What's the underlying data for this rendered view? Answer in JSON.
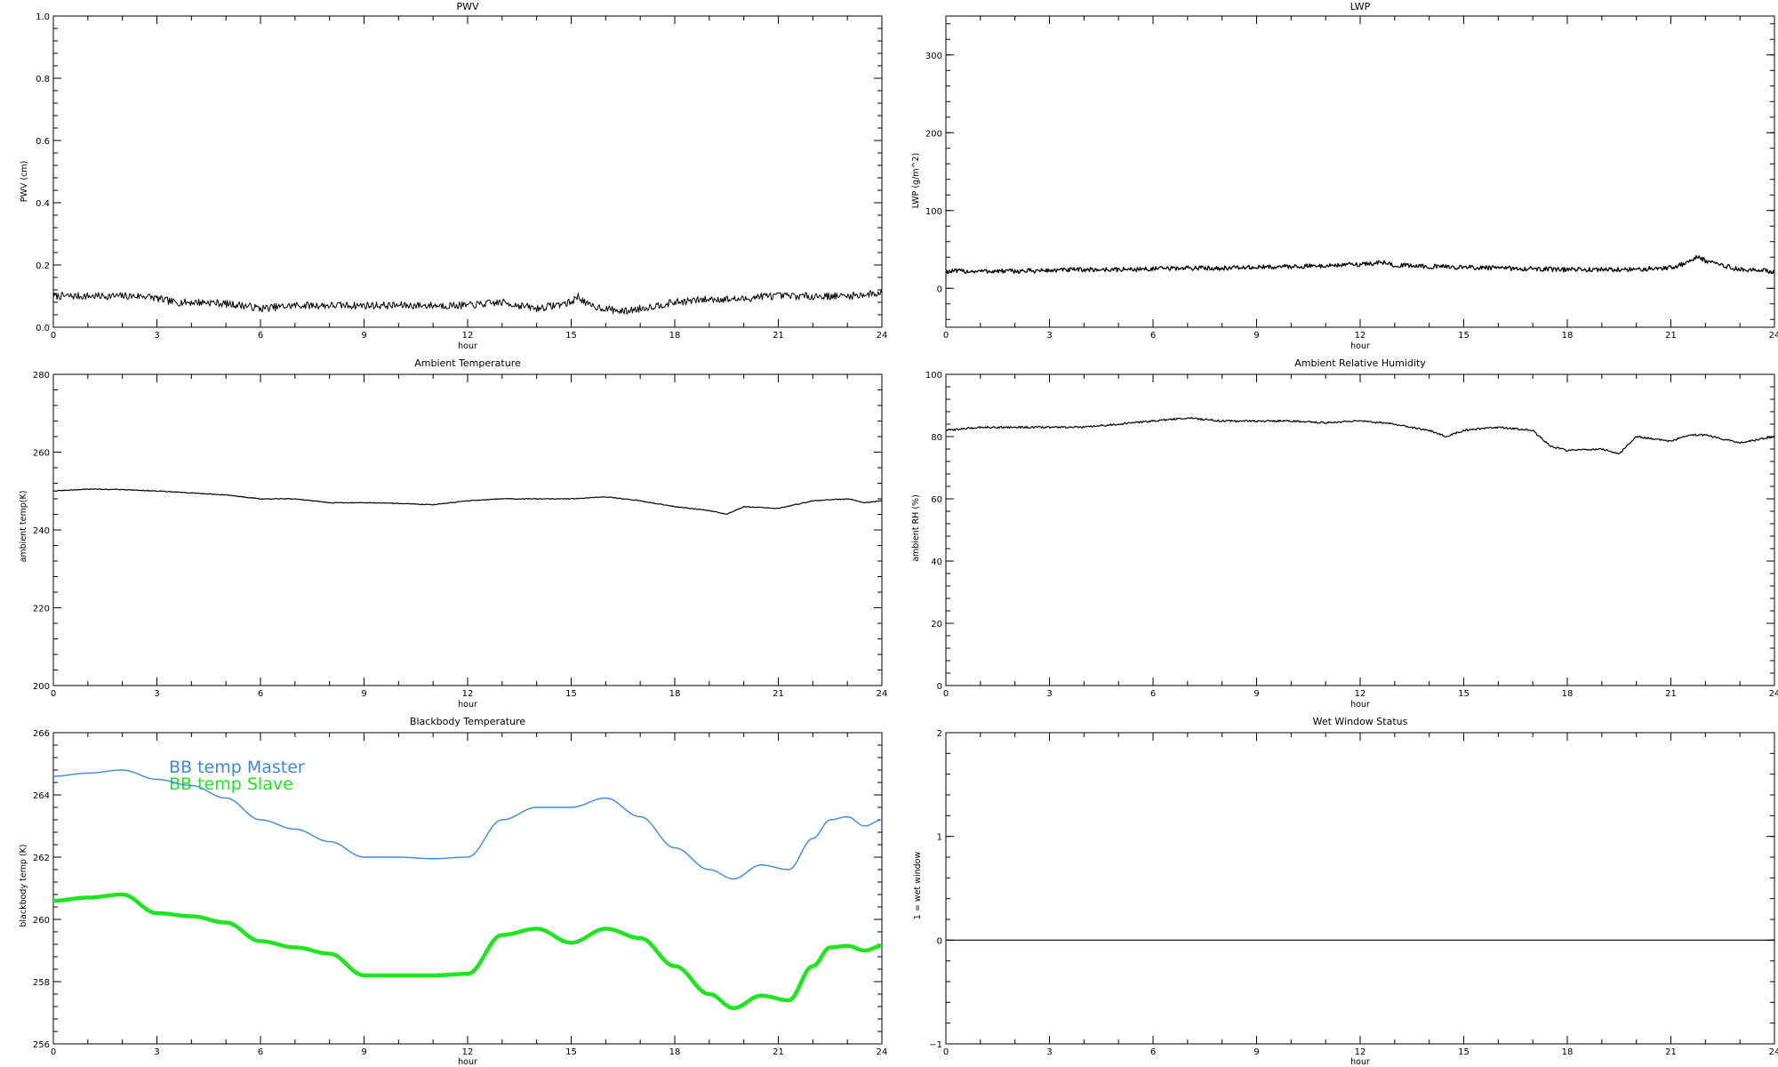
{
  "chart_data": [
    {
      "id": "pwv",
      "type": "line",
      "title": "PWV",
      "xlabel": "hour",
      "ylabel": "PWV (cm)",
      "xlim": [
        0,
        24
      ],
      "ylim": [
        0,
        1
      ],
      "xticks": [
        "0",
        "3",
        "6",
        "9",
        "12",
        "15",
        "18",
        "21",
        "24"
      ],
      "yticks": [
        "0.0",
        "0.2",
        "0.4",
        "0.6",
        "0.8",
        "1.0"
      ],
      "ytick_values": [
        0,
        0.2,
        0.4,
        0.6,
        0.8,
        1.0
      ],
      "noise": 0.012,
      "series": [
        {
          "color": "#000000",
          "width": 1,
          "x": [
            0,
            1,
            2,
            2.7,
            3.5,
            4.5,
            5.5,
            6,
            7,
            8,
            9,
            10,
            11,
            12,
            13,
            13.5,
            14,
            15,
            15.2,
            15.5,
            16,
            16.5,
            17,
            18,
            19,
            20,
            20.5,
            21,
            22,
            23,
            24
          ],
          "y": [
            0.1,
            0.1,
            0.1,
            0.1,
            0.08,
            0.08,
            0.07,
            0.06,
            0.07,
            0.07,
            0.07,
            0.07,
            0.07,
            0.07,
            0.08,
            0.07,
            0.06,
            0.08,
            0.1,
            0.07,
            0.06,
            0.05,
            0.06,
            0.08,
            0.09,
            0.09,
            0.1,
            0.1,
            0.1,
            0.1,
            0.11
          ]
        }
      ]
    },
    {
      "id": "lwp",
      "type": "line",
      "title": "LWP",
      "xlabel": "hour",
      "ylabel": "LWP (g/m^2)",
      "xlim": [
        0,
        24
      ],
      "ylim": [
        -50,
        350
      ],
      "xticks": [
        "0",
        "3",
        "6",
        "9",
        "12",
        "15",
        "18",
        "21",
        "24"
      ],
      "yticks": [
        "0",
        "100",
        "200",
        "300"
      ],
      "ytick_values": [
        0,
        100,
        200,
        300
      ],
      "noise": 3,
      "series": [
        {
          "color": "#000000",
          "width": 1.3,
          "x": [
            0,
            1,
            2,
            3,
            4,
            5,
            6,
            7,
            8,
            9,
            10,
            11,
            12,
            12.7,
            13,
            14,
            15,
            16,
            17,
            18,
            19,
            20,
            21,
            21.5,
            21.8,
            22,
            23,
            24
          ],
          "y": [
            22,
            22,
            22,
            23,
            24,
            24,
            25,
            26,
            26,
            27,
            28,
            29,
            31,
            33,
            30,
            28,
            27,
            26,
            25,
            24,
            24,
            24,
            27,
            33,
            42,
            35,
            24,
            22
          ]
        }
      ]
    },
    {
      "id": "ambient-temperature",
      "type": "line",
      "title": "Ambient Temperature",
      "xlabel": "hour",
      "ylabel": "ambient temp(K)",
      "xlim": [
        0,
        24
      ],
      "ylim": [
        200,
        280
      ],
      "xticks": [
        "0",
        "3",
        "6",
        "9",
        "12",
        "15",
        "18",
        "21",
        "24"
      ],
      "yticks": [
        "200",
        "220",
        "240",
        "260",
        "280"
      ],
      "ytick_values": [
        200,
        220,
        240,
        260,
        280
      ],
      "noise": 0.1,
      "series": [
        {
          "color": "#000000",
          "width": 1.2,
          "x": [
            0,
            1,
            2,
            3,
            4,
            5,
            6,
            7,
            8,
            9,
            10,
            11,
            12,
            13,
            14,
            15,
            16,
            17,
            18,
            19,
            19.5,
            20,
            21,
            22,
            23,
            23.5,
            24
          ],
          "y": [
            250,
            250.5,
            250.4,
            250,
            249.5,
            249,
            248,
            248,
            247,
            247,
            246.8,
            246.5,
            247.5,
            248,
            248,
            248,
            248.5,
            247.5,
            246,
            245,
            244,
            246,
            245.5,
            247.5,
            248,
            247,
            247.5
          ]
        }
      ]
    },
    {
      "id": "ambient-relative-humidity",
      "type": "line",
      "title": "Ambient Relative Humidity",
      "xlabel": "hour",
      "ylabel": "ambient RH (%)",
      "xlim": [
        0,
        24
      ],
      "ylim": [
        0,
        100
      ],
      "xticks": [
        "0",
        "3",
        "6",
        "9",
        "12",
        "15",
        "18",
        "21",
        "24"
      ],
      "yticks": [
        "0",
        "20",
        "40",
        "60",
        "80",
        "100"
      ],
      "ytick_values": [
        0,
        20,
        40,
        60,
        80,
        100
      ],
      "noise": 0.3,
      "series": [
        {
          "color": "#000000",
          "width": 1.2,
          "x": [
            0,
            1,
            2,
            3,
            4,
            5,
            6,
            7,
            8,
            9,
            10,
            11,
            12,
            13,
            14,
            14.5,
            15,
            16,
            17,
            17.5,
            18,
            19,
            19.5,
            20,
            21,
            21.5,
            22,
            23,
            24
          ],
          "y": [
            82,
            83,
            83,
            83,
            83,
            84,
            85,
            86,
            85,
            85,
            85,
            84.5,
            85,
            84,
            82,
            80,
            82,
            83,
            82,
            77,
            75.5,
            76,
            74.5,
            80,
            78.5,
            80.5,
            80.5,
            78,
            80
          ]
        }
      ]
    },
    {
      "id": "blackbody-temperature",
      "type": "line",
      "title": "Blackbody Temperature",
      "xlabel": "hour",
      "ylabel": "blackbody temp (K)",
      "xlim": [
        0,
        24
      ],
      "ylim": [
        256,
        266
      ],
      "xticks": [
        "0",
        "3",
        "6",
        "9",
        "12",
        "15",
        "18",
        "21",
        "24"
      ],
      "yticks": [
        "256",
        "258",
        "260",
        "262",
        "264",
        "266"
      ],
      "ytick_values": [
        256,
        258,
        260,
        262,
        264,
        266
      ],
      "noise": 0,
      "legend": [
        {
          "label": "BB temp Master",
          "color": "#3a87e8"
        },
        {
          "label": "BB temp Slave",
          "color": "#1ee61e"
        }
      ],
      "series": [
        {
          "name": "BB temp Master",
          "color": "#3a87e8",
          "width": 1.4,
          "x": [
            0,
            1,
            2,
            3,
            4,
            5,
            6,
            7,
            8,
            9,
            10,
            11,
            12,
            13,
            14,
            15,
            16,
            17,
            18,
            19,
            19.7,
            20.5,
            21.3,
            22,
            22.5,
            23,
            23.5,
            24
          ],
          "y": [
            264.6,
            264.7,
            264.8,
            264.5,
            264.3,
            263.9,
            263.2,
            262.9,
            262.5,
            262.0,
            262.0,
            261.95,
            262.0,
            263.2,
            263.6,
            263.6,
            263.9,
            263.3,
            262.3,
            261.6,
            261.3,
            261.75,
            261.6,
            262.6,
            263.2,
            263.3,
            263.0,
            263.2
          ]
        },
        {
          "name": "BB temp Slave",
          "color": "#1ee61e",
          "width": 4.5,
          "x": [
            0,
            1,
            2,
            3,
            4,
            5,
            6,
            7,
            8,
            9,
            10,
            11,
            12,
            13,
            14,
            15,
            16,
            17,
            18,
            19,
            19.7,
            20.5,
            21.3,
            22,
            22.5,
            23,
            23.5,
            24
          ],
          "y": [
            260.6,
            260.7,
            260.8,
            260.2,
            260.1,
            259.9,
            259.3,
            259.1,
            258.9,
            258.2,
            258.2,
            258.2,
            258.25,
            259.5,
            259.7,
            259.25,
            259.7,
            259.4,
            258.5,
            257.6,
            257.15,
            257.55,
            257.4,
            258.5,
            259.1,
            259.15,
            259.0,
            259.15
          ]
        }
      ]
    },
    {
      "id": "wet-window-status",
      "type": "line",
      "title": "Wet Window Status",
      "xlabel": "hour",
      "ylabel": "1 = wet window",
      "xlim": [
        0,
        24
      ],
      "ylim": [
        -1,
        2
      ],
      "xticks": [
        "0",
        "3",
        "6",
        "9",
        "12",
        "15",
        "18",
        "21",
        "24"
      ],
      "yticks": [
        "−1",
        "0",
        "1",
        "2"
      ],
      "ytick_values": [
        -1,
        0,
        1,
        2
      ],
      "noise": 0,
      "series": [
        {
          "color": "#000000",
          "width": 1.2,
          "x": [
            0,
            24
          ],
          "y": [
            0,
            0
          ]
        }
      ]
    }
  ]
}
